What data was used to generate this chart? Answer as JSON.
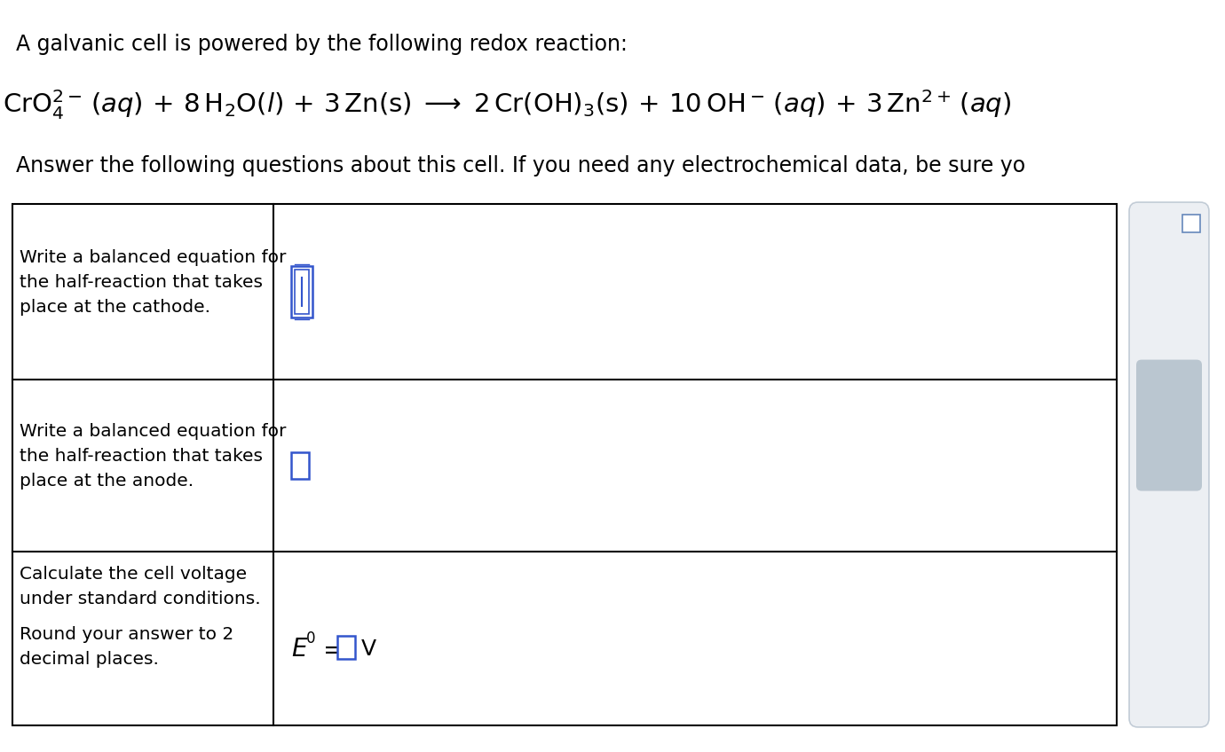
{
  "title_line": "A galvanic cell is powered by the following redox reaction:",
  "answer_line": "Answer the following questions about this cell. If you need any electrochemical data, be sure yo",
  "bg_color": "#ffffff",
  "text_color": "#000000",
  "table_border_color": "#000000",
  "blue_color": "#3355cc",
  "sidebar_fill": "#dde3ea",
  "sidebar_border": "#9aaabb",
  "row1_label": "Write a balanced equation for\nthe half-reaction that takes\nplace at the cathode.",
  "row2_label": "Write a balanced equation for\nthe half-reaction that takes\nplace at the anode.",
  "row3_label1": "Calculate the cell voltage\nunder standard conditions.",
  "row3_label2": "Round your answer to 2\ndecimal places.",
  "font_size_title": 17,
  "font_size_label": 14.5,
  "font_size_eq": 21
}
